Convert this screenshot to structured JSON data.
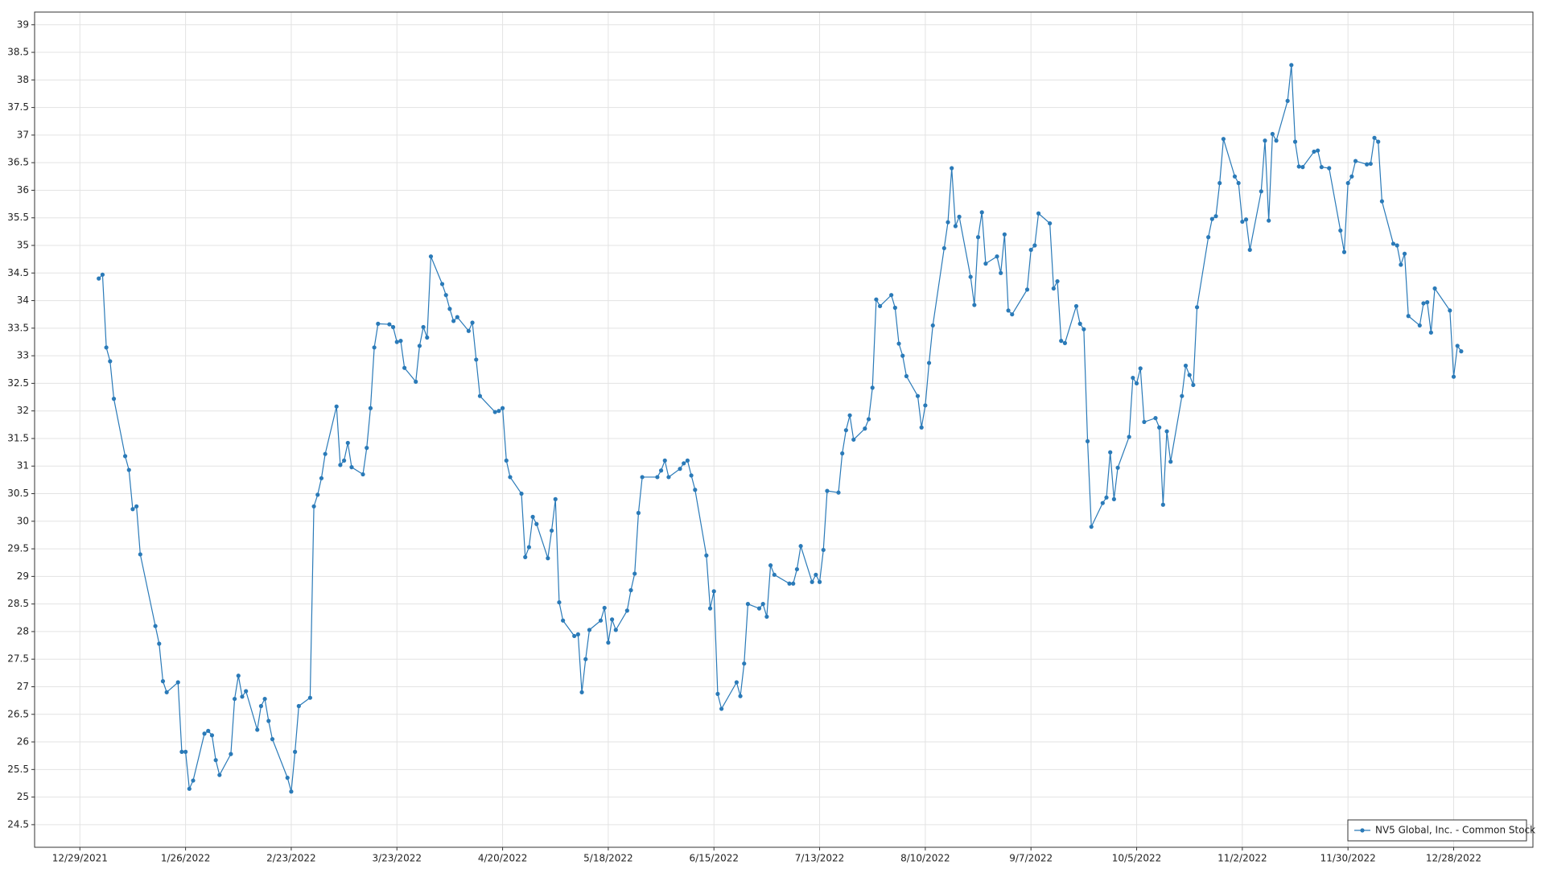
{
  "chart_data": {
    "type": "line",
    "grid": true,
    "legend": "lower right",
    "xlim": [
      "12/17/2021",
      "1/18/2023"
    ],
    "xticks": [
      "12/29/2021",
      "1/26/2022",
      "2/23/2022",
      "3/23/2022",
      "4/20/2022",
      "5/18/2022",
      "6/15/2022",
      "7/13/2022",
      "8/10/2022",
      "9/7/2022",
      "10/5/2022",
      "11/2/2022",
      "11/30/2022",
      "12/28/2022"
    ],
    "ylim": [
      24.09,
      39.23
    ],
    "yticks": [
      24.5,
      25,
      25.5,
      26,
      26.5,
      27,
      27.5,
      28,
      28.5,
      29,
      29.5,
      30,
      30.5,
      31,
      31.5,
      32,
      32.5,
      33,
      33.5,
      34,
      34.5,
      35,
      35.5,
      36,
      36.5,
      37,
      37.5,
      38,
      38.5,
      39
    ],
    "x": [
      "1/3/2022",
      "1/4/2022",
      "1/5/2022",
      "1/6/2022",
      "1/7/2022",
      "1/10/2022",
      "1/11/2022",
      "1/12/2022",
      "1/13/2022",
      "1/14/2022",
      "1/18/2022",
      "1/19/2022",
      "1/20/2022",
      "1/21/2022",
      "1/24/2022",
      "1/25/2022",
      "1/26/2022",
      "1/27/2022",
      "1/28/2022",
      "1/31/2022",
      "2/1/2022",
      "2/2/2022",
      "2/3/2022",
      "2/4/2022",
      "2/7/2022",
      "2/8/2022",
      "2/9/2022",
      "2/10/2022",
      "2/11/2022",
      "2/14/2022",
      "2/15/2022",
      "2/16/2022",
      "2/17/2022",
      "2/18/2022",
      "2/22/2022",
      "2/23/2022",
      "2/24/2022",
      "2/25/2022",
      "2/28/2022",
      "3/1/2022",
      "3/2/2022",
      "3/3/2022",
      "3/4/2022",
      "3/7/2022",
      "3/8/2022",
      "3/9/2022",
      "3/10/2022",
      "3/11/2022",
      "3/14/2022",
      "3/15/2022",
      "3/16/2022",
      "3/17/2022",
      "3/18/2022",
      "3/21/2022",
      "3/22/2022",
      "3/23/2022",
      "3/24/2022",
      "3/25/2022",
      "3/28/2022",
      "3/29/2022",
      "3/30/2022",
      "3/31/2022",
      "4/1/2022",
      "4/4/2022",
      "4/5/2022",
      "4/6/2022",
      "4/7/2022",
      "4/8/2022",
      "4/11/2022",
      "4/12/2022",
      "4/13/2022",
      "4/14/2022",
      "4/18/2022",
      "4/19/2022",
      "4/20/2022",
      "4/21/2022",
      "4/22/2022",
      "4/25/2022",
      "4/26/2022",
      "4/27/2022",
      "4/28/2022",
      "4/29/2022",
      "5/2/2022",
      "5/3/2022",
      "5/4/2022",
      "5/5/2022",
      "5/6/2022",
      "5/9/2022",
      "5/10/2022",
      "5/11/2022",
      "5/12/2022",
      "5/13/2022",
      "5/16/2022",
      "5/17/2022",
      "5/18/2022",
      "5/19/2022",
      "5/20/2022",
      "5/23/2022",
      "5/24/2022",
      "5/25/2022",
      "5/26/2022",
      "5/27/2022",
      "5/31/2022",
      "6/1/2022",
      "6/2/2022",
      "6/3/2022",
      "6/6/2022",
      "6/7/2022",
      "6/8/2022",
      "6/9/2022",
      "6/10/2022",
      "6/13/2022",
      "6/14/2022",
      "6/15/2022",
      "6/16/2022",
      "6/17/2022",
      "6/21/2022",
      "6/22/2022",
      "6/23/2022",
      "6/24/2022",
      "6/27/2022",
      "6/28/2022",
      "6/29/2022",
      "6/30/2022",
      "7/1/2022",
      "7/5/2022",
      "7/6/2022",
      "7/7/2022",
      "7/8/2022",
      "7/11/2022",
      "7/12/2022",
      "7/13/2022",
      "7/14/2022",
      "7/15/2022",
      "7/18/2022",
      "7/19/2022",
      "7/20/2022",
      "7/21/2022",
      "7/22/2022",
      "7/25/2022",
      "7/26/2022",
      "7/27/2022",
      "7/28/2022",
      "7/29/2022",
      "8/1/2022",
      "8/2/2022",
      "8/3/2022",
      "8/4/2022",
      "8/5/2022",
      "8/8/2022",
      "8/9/2022",
      "8/10/2022",
      "8/11/2022",
      "8/12/2022",
      "8/15/2022",
      "8/16/2022",
      "8/17/2022",
      "8/18/2022",
      "8/19/2022",
      "8/22/2022",
      "8/23/2022",
      "8/24/2022",
      "8/25/2022",
      "8/26/2022",
      "8/29/2022",
      "8/30/2022",
      "8/31/2022",
      "9/1/2022",
      "9/2/2022",
      "9/6/2022",
      "9/7/2022",
      "9/8/2022",
      "9/9/2022",
      "9/12/2022",
      "9/13/2022",
      "9/14/2022",
      "9/15/2022",
      "9/16/2022",
      "9/19/2022",
      "9/20/2022",
      "9/21/2022",
      "9/22/2022",
      "9/23/2022",
      "9/26/2022",
      "9/27/2022",
      "9/28/2022",
      "9/29/2022",
      "9/30/2022",
      "10/3/2022",
      "10/4/2022",
      "10/5/2022",
      "10/6/2022",
      "10/7/2022",
      "10/10/2022",
      "10/11/2022",
      "10/12/2022",
      "10/13/2022",
      "10/14/2022",
      "10/17/2022",
      "10/18/2022",
      "10/19/2022",
      "10/20/2022",
      "10/21/2022",
      "10/24/2022",
      "10/25/2022",
      "10/26/2022",
      "10/27/2022",
      "10/28/2022",
      "10/31/2022",
      "11/1/2022",
      "11/2/2022",
      "11/3/2022",
      "11/4/2022",
      "11/7/2022",
      "11/8/2022",
      "11/9/2022",
      "11/10/2022",
      "11/11/2022",
      "11/14/2022",
      "11/15/2022",
      "11/16/2022",
      "11/17/2022",
      "11/18/2022",
      "11/21/2022",
      "11/22/2022",
      "11/23/2022",
      "11/25/2022",
      "11/28/2022",
      "11/29/2022",
      "11/30/2022",
      "12/1/2022",
      "12/2/2022",
      "12/5/2022",
      "12/6/2022",
      "12/7/2022",
      "12/8/2022",
      "12/9/2022",
      "12/12/2022",
      "12/13/2022",
      "12/14/2022",
      "12/15/2022",
      "12/16/2022",
      "12/19/2022",
      "12/20/2022",
      "12/21/2022",
      "12/22/2022",
      "12/23/2022",
      "12/27/2022",
      "12/28/2022",
      "12/29/2022",
      "12/30/2022"
    ],
    "series": [
      {
        "name": "NV5 Global, Inc. - Common Stock",
        "color": "#2a7ab8",
        "values": [
          34.4,
          34.47,
          33.15,
          32.9,
          32.22,
          31.18,
          30.93,
          30.22,
          30.27,
          29.4,
          28.1,
          27.78,
          27.1,
          26.9,
          27.08,
          25.82,
          25.82,
          25.15,
          25.3,
          26.15,
          26.2,
          26.12,
          25.67,
          25.4,
          25.78,
          26.78,
          27.2,
          26.82,
          26.92,
          26.22,
          26.65,
          26.78,
          26.38,
          26.05,
          25.35,
          25.1,
          25.82,
          26.65,
          26.8,
          30.27,
          30.48,
          30.78,
          31.22,
          32.08,
          31.02,
          31.1,
          31.42,
          30.98,
          30.85,
          31.33,
          32.05,
          33.15,
          33.58,
          33.57,
          33.52,
          33.25,
          33.27,
          32.78,
          32.53,
          33.18,
          33.52,
          33.33,
          34.8,
          34.3,
          34.1,
          33.85,
          33.63,
          33.7,
          33.45,
          33.6,
          32.93,
          32.27,
          31.98,
          32.0,
          32.05,
          31.1,
          30.8,
          30.5,
          29.35,
          29.53,
          30.08,
          29.95,
          29.33,
          29.83,
          30.4,
          28.53,
          28.2,
          27.92,
          27.95,
          26.9,
          27.5,
          28.03,
          28.2,
          28.43,
          27.8,
          28.22,
          28.03,
          28.38,
          28.75,
          29.05,
          30.15,
          30.8,
          30.8,
          30.92,
          31.1,
          30.8,
          30.95,
          31.05,
          31.1,
          30.83,
          30.57,
          29.38,
          28.42,
          28.73,
          26.87,
          26.6,
          27.08,
          26.83,
          27.42,
          28.5,
          28.42,
          28.5,
          28.27,
          29.2,
          29.03,
          28.87,
          28.87,
          29.13,
          29.55,
          28.9,
          29.03,
          28.9,
          29.48,
          30.55,
          30.52,
          31.23,
          31.65,
          31.92,
          31.48,
          31.68,
          31.85,
          32.42,
          34.02,
          33.9,
          34.1,
          33.87,
          33.22,
          33.0,
          32.63,
          32.27,
          31.7,
          32.1,
          32.87,
          33.55,
          34.95,
          35.42,
          36.4,
          35.35,
          35.52,
          34.43,
          33.92,
          35.15,
          35.6,
          34.67,
          34.8,
          34.5,
          35.2,
          33.82,
          33.75,
          34.2,
          34.92,
          35.0,
          35.58,
          35.4,
          34.22,
          34.35,
          33.27,
          33.23,
          33.9,
          33.58,
          33.48,
          31.45,
          29.9,
          30.33,
          30.43,
          31.25,
          30.4,
          30.97,
          31.53,
          32.6,
          32.5,
          32.77,
          31.8,
          31.87,
          31.7,
          30.3,
          31.63,
          31.08,
          32.27,
          32.82,
          32.65,
          32.47,
          33.88,
          35.15,
          35.48,
          35.53,
          36.13,
          36.93,
          36.25,
          36.13,
          35.43,
          35.47,
          34.92,
          35.98,
          36.9,
          35.45,
          37.02,
          36.9,
          37.62,
          38.27,
          36.88,
          36.43,
          36.42,
          36.7,
          36.72,
          36.42,
          36.4,
          35.27,
          34.88,
          36.13,
          36.25,
          36.53,
          36.47,
          36.48,
          36.95,
          36.88,
          35.8,
          35.03,
          35.0,
          34.65,
          34.85,
          33.72,
          33.55,
          33.95,
          33.97,
          33.42,
          34.22,
          33.82,
          32.62,
          33.18,
          33.08
        ]
      }
    ]
  }
}
